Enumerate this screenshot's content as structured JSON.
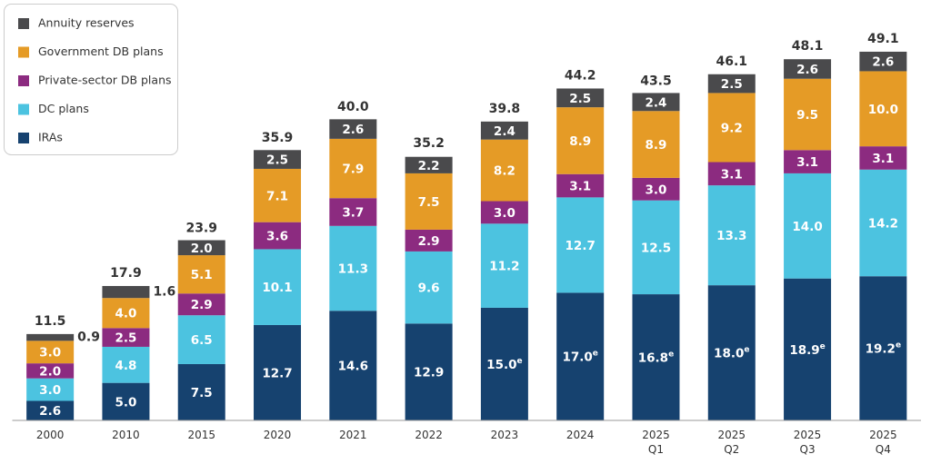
{
  "chart_data": {
    "type": "stacked_bar",
    "categories": [
      "2000",
      "2010",
      "2015",
      "2020",
      "2021",
      "2022",
      "2023",
      "2024",
      "2025 Q1",
      "2025 Q2",
      "2025 Q3",
      "2025 Q4"
    ],
    "ylim": [
      0,
      50
    ],
    "series": [
      {
        "name": "IRAs",
        "color": "#16426f",
        "values": [
          2.6,
          5.0,
          7.5,
          12.7,
          14.6,
          12.9,
          15.0,
          17.0,
          16.8,
          18.0,
          18.9,
          19.2
        ],
        "value_labels": [
          "2.6",
          "5.0",
          "7.5",
          "12.7",
          "14.6",
          "12.9",
          "15.0e",
          "17.0e",
          "16.8e",
          "18.0e",
          "18.9e",
          "19.2e"
        ]
      },
      {
        "name": "DC plans",
        "color": "#4cc3e0",
        "values": [
          3.0,
          4.8,
          6.5,
          10.1,
          11.3,
          9.6,
          11.2,
          12.7,
          12.5,
          13.3,
          14.0,
          14.2
        ],
        "value_labels": [
          "3.0",
          "4.8",
          "6.5",
          "10.1",
          "11.3",
          "9.6",
          "11.2",
          "12.7",
          "12.5",
          "13.3",
          "14.0",
          "14.2"
        ]
      },
      {
        "name": "Private-sector DB plans",
        "color": "#8c2b80",
        "values": [
          2.0,
          2.5,
          2.9,
          3.6,
          3.7,
          2.9,
          3.0,
          3.1,
          3.0,
          3.1,
          3.1,
          3.1
        ],
        "value_labels": [
          "2.0",
          "2.5",
          "2.9",
          "3.6",
          "3.7",
          "2.9",
          "3.0",
          "3.1",
          "3.0",
          "3.1",
          "3.1",
          "3.1"
        ]
      },
      {
        "name": "Government DB plans",
        "color": "#e59b26",
        "values": [
          3.0,
          4.0,
          5.1,
          7.1,
          7.9,
          7.5,
          8.2,
          8.9,
          8.9,
          9.2,
          9.5,
          10.0
        ],
        "value_labels": [
          "3.0",
          "4.0",
          "5.1",
          "7.1",
          "7.9",
          "7.5",
          "8.2",
          "8.9",
          "8.9",
          "9.2",
          "9.5",
          "10.0"
        ]
      },
      {
        "name": "Annuity reserves",
        "color": "#4a4a4c",
        "values": [
          0.9,
          1.6,
          2.0,
          2.5,
          2.6,
          2.2,
          2.4,
          2.5,
          2.4,
          2.5,
          2.6,
          2.6
        ],
        "value_labels": [
          "0.9",
          "1.6",
          "2.0",
          "2.5",
          "2.6",
          "2.2",
          "2.4",
          "2.5",
          "2.4",
          "2.5",
          "2.6",
          "2.6"
        ]
      }
    ],
    "totals": {
      "values": [
        11.5,
        17.9,
        23.9,
        35.9,
        40.0,
        35.2,
        39.8,
        44.2,
        43.5,
        46.1,
        48.1,
        49.1
      ],
      "value_labels": [
        "11.5",
        "17.9",
        "23.9",
        "35.9",
        "40.0",
        "35.2",
        "39.8",
        "44.2",
        "43.5",
        "46.1",
        "48.1",
        "49.1"
      ]
    }
  }
}
